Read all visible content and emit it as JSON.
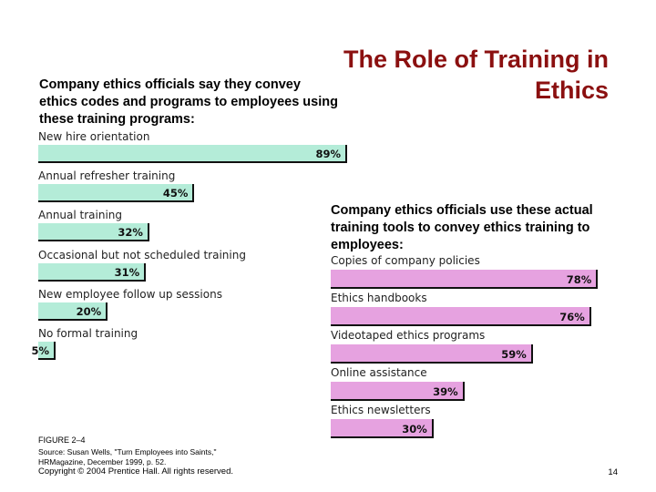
{
  "slide": {
    "title": "The Role of Training in Ethics",
    "page_number": "14"
  },
  "chart_data": [
    {
      "type": "bar",
      "orientation": "horizontal",
      "title": "Company ethics officials say they convey ethics codes and programs to employees using these training programs:",
      "categories": [
        "New hire orientation",
        "Annual refresher training",
        "Annual training",
        "Occasional but not scheduled training",
        "New employee follow up sessions",
        "No formal training"
      ],
      "values": [
        89,
        45,
        32,
        31,
        20,
        5
      ],
      "value_labels": [
        "89%",
        "45%",
        "32%",
        "31%",
        "20%",
        "5%"
      ],
      "unit": "%",
      "xlim": [
        0,
        100
      ],
      "color": "#b4ecd8"
    },
    {
      "type": "bar",
      "orientation": "horizontal",
      "title": "Company ethics officials use these actual training tools to convey ethics training to employees:",
      "categories": [
        "Copies of company policies",
        "Ethics handbooks",
        "Videotaped ethics programs",
        "Online assistance",
        "Ethics newsletters"
      ],
      "values": [
        78,
        76,
        59,
        39,
        30
      ],
      "value_labels": [
        "78%",
        "76%",
        "59%",
        "39%",
        "30%"
      ],
      "unit": "%",
      "xlim": [
        0,
        100
      ],
      "color": "#e6a2e0"
    }
  ],
  "footer": {
    "figure_label": "FIGURE 2–4",
    "source_line1": "Source: Susan Wells, \"Turn Employees into Saints,\"",
    "source_line2": "HRMagazine, December 1999, p. 52.",
    "copyright": "Copyright © 2004 Prentice Hall. All rights reserved."
  }
}
